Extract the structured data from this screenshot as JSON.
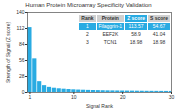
{
  "chart_data": {
    "type": "bar",
    "title": "Human Protein Microarray Specificity Validation",
    "xlabel": "Signal Rank",
    "ylabel": "Strength of Signal (Z score)",
    "x": [
      1,
      2,
      3,
      4,
      5,
      6,
      7,
      8,
      9,
      10,
      11,
      12,
      13,
      14,
      15,
      16,
      17,
      18,
      19,
      20,
      21,
      22,
      23,
      24,
      25,
      26,
      27,
      28,
      29,
      30
    ],
    "values": [
      113.57,
      58.9,
      18.98,
      12.0,
      9.0,
      7.5,
      6.5,
      5.8,
      5.2,
      4.7,
      4.3,
      4.0,
      3.7,
      3.5,
      3.3,
      3.1,
      2.9,
      2.8,
      2.7,
      2.6,
      2.5,
      2.4,
      2.3,
      2.2,
      2.1,
      2.05,
      2.0,
      1.95,
      1.9,
      1.85
    ],
    "color": "#29abe2",
    "xlim": [
      0.5,
      30
    ],
    "xticks": [
      1,
      10,
      20,
      30
    ],
    "ylim": [
      0,
      140
    ],
    "yticks": [
      0,
      28,
      56,
      84,
      112,
      140
    ],
    "grid": false,
    "table": {
      "headers": [
        "Rank",
        "Protein",
        "Z score",
        "S score"
      ],
      "rows": [
        [
          "1",
          "Filaggrin-1",
          "113.57",
          "54.67"
        ],
        [
          "2",
          "EEF2K",
          "58.9",
          "41.04"
        ],
        [
          "3",
          "TCN1",
          "18.98",
          "18.98"
        ]
      ],
      "color": "#29abe2"
    }
  }
}
